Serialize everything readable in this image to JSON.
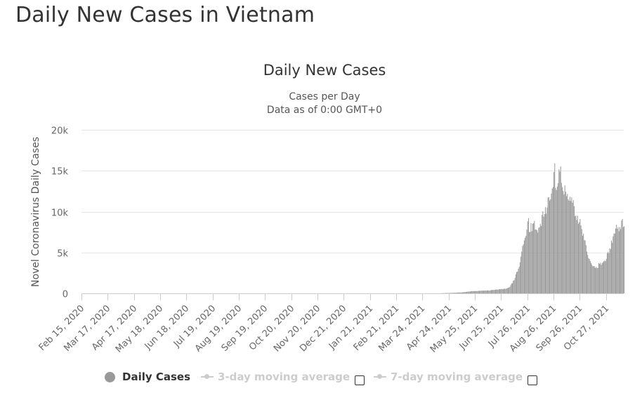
{
  "page": {
    "title": "Daily New Cases in Vietnam"
  },
  "chart_data": {
    "type": "bar",
    "title": "Daily New Cases",
    "subtitle_line1": "Cases per Day",
    "subtitle_line2": "Data as of 0:00 GMT+0",
    "ylabel": "Novel Coronavirus Daily Cases",
    "xlabel": "",
    "ylim": [
      0,
      20000
    ],
    "y_ticks": [
      {
        "value": 0,
        "label": "0"
      },
      {
        "value": 5000,
        "label": "5k"
      },
      {
        "value": 10000,
        "label": "10k"
      },
      {
        "value": 15000,
        "label": "15k"
      },
      {
        "value": 20000,
        "label": "20k"
      }
    ],
    "x_start_date": "2020-02-15",
    "x_end_date": "2021-11-17",
    "x_ticks": [
      "Feb 15, 2020",
      "Mar 17, 2020",
      "Apr 17, 2020",
      "May 18, 2020",
      "Jun 18, 2020",
      "Jul 19, 2020",
      "Aug 19, 2020",
      "Sep 19, 2020",
      "Oct 20, 2020",
      "Nov 20, 2020",
      "Dec 21, 2020",
      "Jan 21, 2021",
      "Feb 21, 2021",
      "Mar 24, 2021",
      "Apr 24, 2021",
      "May 25, 2021",
      "Jun 25, 2021",
      "Jul 26, 2021",
      "Aug 26, 2021",
      "Sep 26, 2021",
      "Oct 27, 2021"
    ],
    "series": [
      {
        "name": "Daily Cases",
        "color": "#999999",
        "note": "daily values read off chart; earlier days are ~0",
        "daily_points": [
          [
            "2021-05-01",
            70
          ],
          [
            "2021-05-10",
            120
          ],
          [
            "2021-05-20",
            250
          ],
          [
            "2021-05-30",
            300
          ],
          [
            "2021-06-10",
            350
          ],
          [
            "2021-06-20",
            450
          ],
          [
            "2021-06-30",
            550
          ],
          [
            "2021-07-05",
            800
          ],
          [
            "2021-07-10",
            1600
          ],
          [
            "2021-07-15",
            3000
          ],
          [
            "2021-07-18",
            4500
          ],
          [
            "2021-07-20",
            5800
          ],
          [
            "2021-07-23",
            6800
          ],
          [
            "2021-07-25",
            7800
          ],
          [
            "2021-07-27",
            9200
          ],
          [
            "2021-07-28",
            7500
          ],
          [
            "2021-08-01",
            8500
          ],
          [
            "2021-08-05",
            7800
          ],
          [
            "2021-08-10",
            8500
          ],
          [
            "2021-08-12",
            9600
          ],
          [
            "2021-08-15",
            9700
          ],
          [
            "2021-08-18",
            10500
          ],
          [
            "2021-08-22",
            11500
          ],
          [
            "2021-08-25",
            13000
          ],
          [
            "2021-08-27",
            15900
          ],
          [
            "2021-08-28",
            12900
          ],
          [
            "2021-08-31",
            13500
          ],
          [
            "2021-09-02",
            14900
          ],
          [
            "2021-09-05",
            13000
          ],
          [
            "2021-09-08",
            13200
          ],
          [
            "2021-09-12",
            11500
          ],
          [
            "2021-09-15",
            11300
          ],
          [
            "2021-09-18",
            11400
          ],
          [
            "2021-09-21",
            9500
          ],
          [
            "2021-09-24",
            8500
          ],
          [
            "2021-09-27",
            8300
          ],
          [
            "2021-10-01",
            6500
          ],
          [
            "2021-10-04",
            5100
          ],
          [
            "2021-10-07",
            4200
          ],
          [
            "2021-10-10",
            3500
          ],
          [
            "2021-10-13",
            3300
          ],
          [
            "2021-10-16",
            3100
          ],
          [
            "2021-10-19",
            3600
          ],
          [
            "2021-10-22",
            3700
          ],
          [
            "2021-10-25",
            4000
          ],
          [
            "2021-10-28",
            4900
          ],
          [
            "2021-10-31",
            5500
          ],
          [
            "2021-11-03",
            6200
          ],
          [
            "2021-11-06",
            7300
          ],
          [
            "2021-11-09",
            7900
          ],
          [
            "2021-11-12",
            8100
          ],
          [
            "2021-11-14",
            8900
          ],
          [
            "2021-11-17",
            8200
          ]
        ]
      }
    ],
    "legend": [
      {
        "label": "Daily Cases",
        "enabled": true,
        "color": "#999999"
      },
      {
        "label": "3-day moving average",
        "enabled": false,
        "color": "#cccccc"
      },
      {
        "label": "7-day moving average",
        "enabled": false,
        "color": "#cccccc"
      }
    ]
  }
}
